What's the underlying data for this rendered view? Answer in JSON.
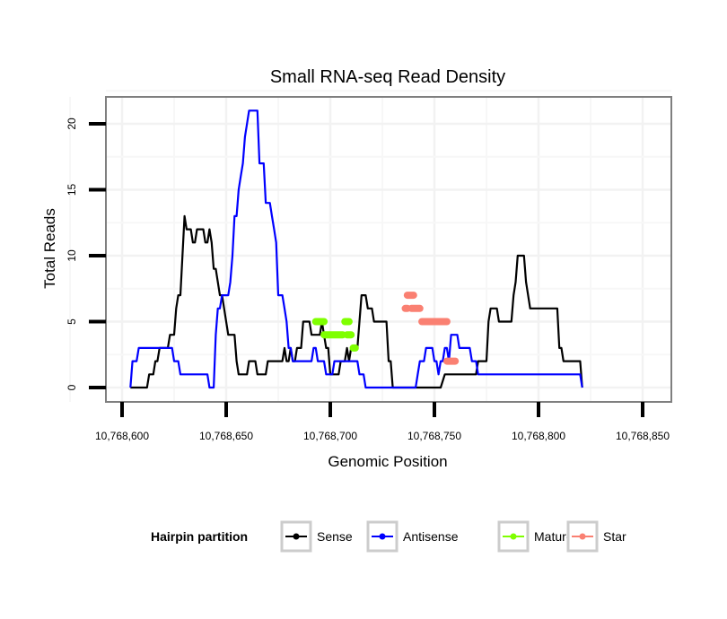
{
  "chart_data": {
    "type": "line",
    "title": "Small RNA-seq Read Density",
    "xlabel": "Genomic Position",
    "ylabel": "Total Reads",
    "xlim": [
      10768591,
      10768862
    ],
    "ylim": [
      -1.1,
      22
    ],
    "x_ticks": [
      10768600,
      10768650,
      10768700,
      10768750,
      10768800,
      10768850
    ],
    "x_tick_labels": [
      "10,768,600",
      "10,768,650",
      "10,768,700",
      "10,768,750",
      "10,768,800",
      "10,768,850"
    ],
    "y_ticks": [
      0,
      5,
      10,
      15,
      20
    ],
    "y_tick_labels": [
      "0",
      "5",
      "10",
      "15",
      "20"
    ],
    "grid": true,
    "legend": {
      "title": "Hairpin partition",
      "position": "bottom",
      "entries": [
        {
          "label": "Sense",
          "color": "#000000"
        },
        {
          "label": "Antisense",
          "color": "#0000ff"
        },
        {
          "label": "Mature",
          "color": "#7fff00"
        },
        {
          "label": "Star",
          "color": "#fa8072"
        }
      ]
    },
    "series": [
      {
        "name": "Sense",
        "color": "#000000",
        "style": "line",
        "points": [
          [
            10768604,
            0
          ],
          [
            10768612,
            0
          ],
          [
            10768613,
            1
          ],
          [
            10768615,
            1
          ],
          [
            10768616,
            2
          ],
          [
            10768617,
            2
          ],
          [
            10768618,
            3
          ],
          [
            10768622,
            3
          ],
          [
            10768623,
            4
          ],
          [
            10768625,
            4
          ],
          [
            10768626,
            6
          ],
          [
            10768627,
            7
          ],
          [
            10768628,
            7
          ],
          [
            10768629,
            10
          ],
          [
            10768630,
            13
          ],
          [
            10768631,
            12
          ],
          [
            10768633,
            12
          ],
          [
            10768634,
            11
          ],
          [
            10768635,
            11
          ],
          [
            10768636,
            12
          ],
          [
            10768639,
            12
          ],
          [
            10768640,
            11
          ],
          [
            10768641,
            11
          ],
          [
            10768642,
            12
          ],
          [
            10768643,
            11
          ],
          [
            10768644,
            9
          ],
          [
            10768645,
            9
          ],
          [
            10768646,
            8
          ],
          [
            10768647,
            7
          ],
          [
            10768648,
            7
          ],
          [
            10768649,
            6
          ],
          [
            10768650,
            5
          ],
          [
            10768651,
            4
          ],
          [
            10768654,
            4
          ],
          [
            10768655,
            2
          ],
          [
            10768656,
            1
          ],
          [
            10768660,
            1
          ],
          [
            10768661,
            2
          ],
          [
            10768664,
            2
          ],
          [
            10768665,
            1
          ],
          [
            10768669,
            1
          ],
          [
            10768670,
            2
          ],
          [
            10768677,
            2
          ],
          [
            10768678,
            3
          ],
          [
            10768679,
            2
          ],
          [
            10768680,
            2
          ],
          [
            10768681,
            3
          ],
          [
            10768682,
            2
          ],
          [
            10768683,
            2
          ],
          [
            10768684,
            3
          ],
          [
            10768686,
            3
          ],
          [
            10768687,
            5
          ],
          [
            10768690,
            5
          ],
          [
            10768691,
            4
          ],
          [
            10768695,
            4
          ],
          [
            10768696,
            5
          ],
          [
            10768697,
            4
          ],
          [
            10768698,
            3
          ],
          [
            10768699,
            3
          ],
          [
            10768700,
            1
          ],
          [
            10768704,
            1
          ],
          [
            10768705,
            2
          ],
          [
            10768707,
            2
          ],
          [
            10768708,
            3
          ],
          [
            10768709,
            2
          ],
          [
            10768710,
            3
          ],
          [
            10768713,
            3
          ],
          [
            10768714,
            5
          ],
          [
            10768715,
            7
          ],
          [
            10768717,
            7
          ],
          [
            10768718,
            6
          ],
          [
            10768720,
            6
          ],
          [
            10768721,
            5
          ],
          [
            10768727,
            5
          ],
          [
            10768728,
            2
          ],
          [
            10768729,
            2
          ],
          [
            10768730,
            0
          ],
          [
            10768753,
            0
          ],
          [
            10768755,
            1
          ],
          [
            10768770,
            1
          ],
          [
            10768771,
            2
          ],
          [
            10768775,
            2
          ],
          [
            10768776,
            5
          ],
          [
            10768777,
            6
          ],
          [
            10768780,
            6
          ],
          [
            10768781,
            5
          ],
          [
            10768787,
            5
          ],
          [
            10768788,
            7
          ],
          [
            10768789,
            8
          ],
          [
            10768790,
            10
          ],
          [
            10768793,
            10
          ],
          [
            10768794,
            8
          ],
          [
            10768796,
            6
          ],
          [
            10768809,
            6
          ],
          [
            10768810,
            3
          ],
          [
            10768811,
            3
          ],
          [
            10768812,
            2
          ],
          [
            10768820,
            2
          ],
          [
            10768821,
            0
          ]
        ]
      },
      {
        "name": "Antisense",
        "color": "#0000ff",
        "style": "line",
        "points": [
          [
            10768604,
            0
          ],
          [
            10768605,
            2
          ],
          [
            10768607,
            2
          ],
          [
            10768608,
            3
          ],
          [
            10768624,
            3
          ],
          [
            10768625,
            2
          ],
          [
            10768627,
            2
          ],
          [
            10768628,
            1
          ],
          [
            10768641,
            1
          ],
          [
            10768642,
            0
          ],
          [
            10768644,
            0
          ],
          [
            10768645,
            4
          ],
          [
            10768646,
            6
          ],
          [
            10768647,
            6
          ],
          [
            10768648,
            7
          ],
          [
            10768651,
            7
          ],
          [
            10768652,
            8
          ],
          [
            10768653,
            10
          ],
          [
            10768654,
            13
          ],
          [
            10768655,
            13
          ],
          [
            10768656,
            15
          ],
          [
            10768657,
            16
          ],
          [
            10768658,
            17
          ],
          [
            10768659,
            19
          ],
          [
            10768660,
            20
          ],
          [
            10768661,
            21
          ],
          [
            10768665,
            21
          ],
          [
            10768666,
            17
          ],
          [
            10768668,
            17
          ],
          [
            10768669,
            14
          ],
          [
            10768671,
            14
          ],
          [
            10768672,
            13
          ],
          [
            10768673,
            12
          ],
          [
            10768674,
            11
          ],
          [
            10768675,
            7
          ],
          [
            10768677,
            7
          ],
          [
            10768678,
            6
          ],
          [
            10768679,
            5
          ],
          [
            10768680,
            3
          ],
          [
            10768681,
            3
          ],
          [
            10768682,
            2
          ],
          [
            10768691,
            2
          ],
          [
            10768692,
            3
          ],
          [
            10768693,
            3
          ],
          [
            10768694,
            2
          ],
          [
            10768697,
            2
          ],
          [
            10768698,
            1
          ],
          [
            10768701,
            1
          ],
          [
            10768702,
            2
          ],
          [
            10768713,
            2
          ],
          [
            10768714,
            1
          ],
          [
            10768716,
            1
          ],
          [
            10768717,
            0
          ],
          [
            10768741,
            0
          ],
          [
            10768742,
            1
          ],
          [
            10768743,
            2
          ],
          [
            10768745,
            2
          ],
          [
            10768746,
            3
          ],
          [
            10768749,
            3
          ],
          [
            10768750,
            2
          ],
          [
            10768751,
            2
          ],
          [
            10768752,
            1
          ],
          [
            10768753,
            2
          ],
          [
            10768754,
            2
          ],
          [
            10768755,
            3
          ],
          [
            10768756,
            3
          ],
          [
            10768757,
            2
          ],
          [
            10768758,
            4
          ],
          [
            10768761,
            4
          ],
          [
            10768762,
            3
          ],
          [
            10768767,
            3
          ],
          [
            10768768,
            2
          ],
          [
            10768770,
            2
          ],
          [
            10768771,
            1
          ],
          [
            10768820,
            1
          ],
          [
            10768821,
            0
          ]
        ]
      },
      {
        "name": "Mature",
        "color": "#7fff00",
        "style": "segments",
        "segments": [
          [
            [
              10768693,
              5
            ],
            [
              10768697,
              5
            ]
          ],
          [
            [
              10768697,
              4
            ],
            [
              10768706,
              4
            ]
          ],
          [
            [
              10768707,
              5
            ],
            [
              10768709,
              5
            ]
          ],
          [
            [
              10768708,
              4
            ],
            [
              10768710,
              4
            ]
          ],
          [
            [
              10768711,
              3
            ],
            [
              10768712,
              3
            ]
          ]
        ]
      },
      {
        "name": "Star",
        "color": "#fa8072",
        "style": "segments",
        "segments": [
          [
            [
              10768737,
              7
            ],
            [
              10768740,
              7
            ]
          ],
          [
            [
              10768736,
              6
            ],
            [
              10768737,
              6
            ]
          ],
          [
            [
              10768739,
              6
            ],
            [
              10768743,
              6
            ]
          ],
          [
            [
              10768744,
              5
            ],
            [
              10768756,
              5
            ]
          ],
          [
            [
              10768756,
              2
            ],
            [
              10768760,
              2
            ]
          ]
        ]
      }
    ]
  }
}
